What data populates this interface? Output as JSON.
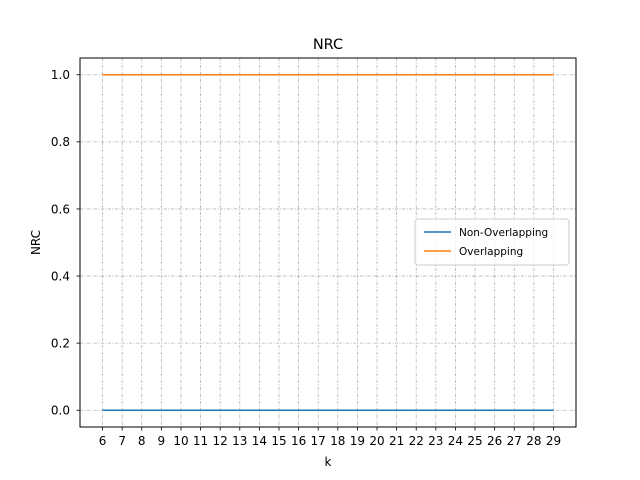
{
  "chart_data": {
    "type": "line",
    "title": "NRC",
    "xlabel": "k",
    "ylabel": "NRC",
    "x": [
      6,
      7,
      8,
      9,
      10,
      11,
      12,
      13,
      14,
      15,
      16,
      17,
      18,
      19,
      20,
      21,
      22,
      23,
      24,
      25,
      26,
      27,
      28,
      29
    ],
    "xlim": [
      4.85,
      30.15
    ],
    "ylim": [
      -0.05,
      1.05
    ],
    "yticks": [
      0.0,
      0.2,
      0.4,
      0.6,
      0.8,
      1.0
    ],
    "ytick_labels": [
      "0.0",
      "0.2",
      "0.4",
      "0.6",
      "0.8",
      "1.0"
    ],
    "grid": true,
    "legend_position": "center-right",
    "series": [
      {
        "name": "Non-Overlapping",
        "color": "#1f77b4",
        "values": [
          0,
          0,
          0,
          0,
          0,
          0,
          0,
          0,
          0,
          0,
          0,
          0,
          0,
          0,
          0,
          0,
          0,
          0,
          0,
          0,
          0,
          0,
          0,
          0
        ]
      },
      {
        "name": "Overlapping",
        "color": "#ff7f0e",
        "values": [
          1,
          1,
          1,
          1,
          1,
          1,
          1,
          1,
          1,
          1,
          1,
          1,
          1,
          1,
          1,
          1,
          1,
          1,
          1,
          1,
          1,
          1,
          1,
          1
        ]
      }
    ]
  }
}
